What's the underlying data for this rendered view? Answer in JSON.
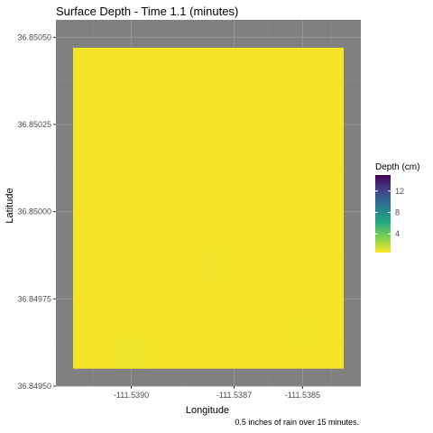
{
  "chart_data": {
    "type": "heatmap",
    "title": "Surface Depth - Time 1.1 (minutes)",
    "xlabel": "Longitude",
    "ylabel": "Latitude",
    "caption": "0.5 inches of rain over 15 minutes.",
    "x_ticks": [
      -111.539,
      -111.5387,
      -111.5385
    ],
    "x_tick_labels": [
      "-111.5390",
      "-111.5387",
      "-111.5385"
    ],
    "y_ticks": [
      36.8495,
      36.84975,
      36.85,
      36.85025,
      36.8505
    ],
    "y_tick_labels": [
      "36.84950",
      "36.84975",
      "36.85000",
      "36.85025",
      "36.85050"
    ],
    "xlim": [
      -111.53922,
      -111.53833
    ],
    "ylim": [
      36.8495,
      36.85055
    ],
    "raster_extent": {
      "x": [
        -111.53917,
        -111.53838
      ],
      "y": [
        36.84955,
        36.85047
      ]
    },
    "fill_color": "#f6e526",
    "panel_color": "#808080",
    "grid": true,
    "legend": {
      "title": "Depth (cm)",
      "position": "right",
      "colormap": "viridis",
      "ticks": [
        4,
        8,
        12
      ],
      "tick_labels": [
        "4",
        "8",
        "12"
      ],
      "range": [
        0.5,
        15
      ],
      "colors": [
        "#fde725",
        "#7ad151",
        "#22a884",
        "#2a788e",
        "#414487",
        "#440154"
      ]
    },
    "patches": [
      {
        "x": [
          -111.53905,
          -111.53895
        ],
        "y": [
          36.84955,
          36.84964
        ],
        "depth": 1.0,
        "color": "#f1e52a"
      },
      {
        "x": [
          -111.5388,
          -111.53872
        ],
        "y": [
          36.8498,
          36.8499
        ],
        "depth": 1.0,
        "color": "#f3e42a"
      },
      {
        "x": [
          -111.53855,
          -111.53845
        ],
        "y": [
          36.84962,
          36.8497
        ],
        "depth": 1.0,
        "color": "#f4e428"
      }
    ]
  }
}
